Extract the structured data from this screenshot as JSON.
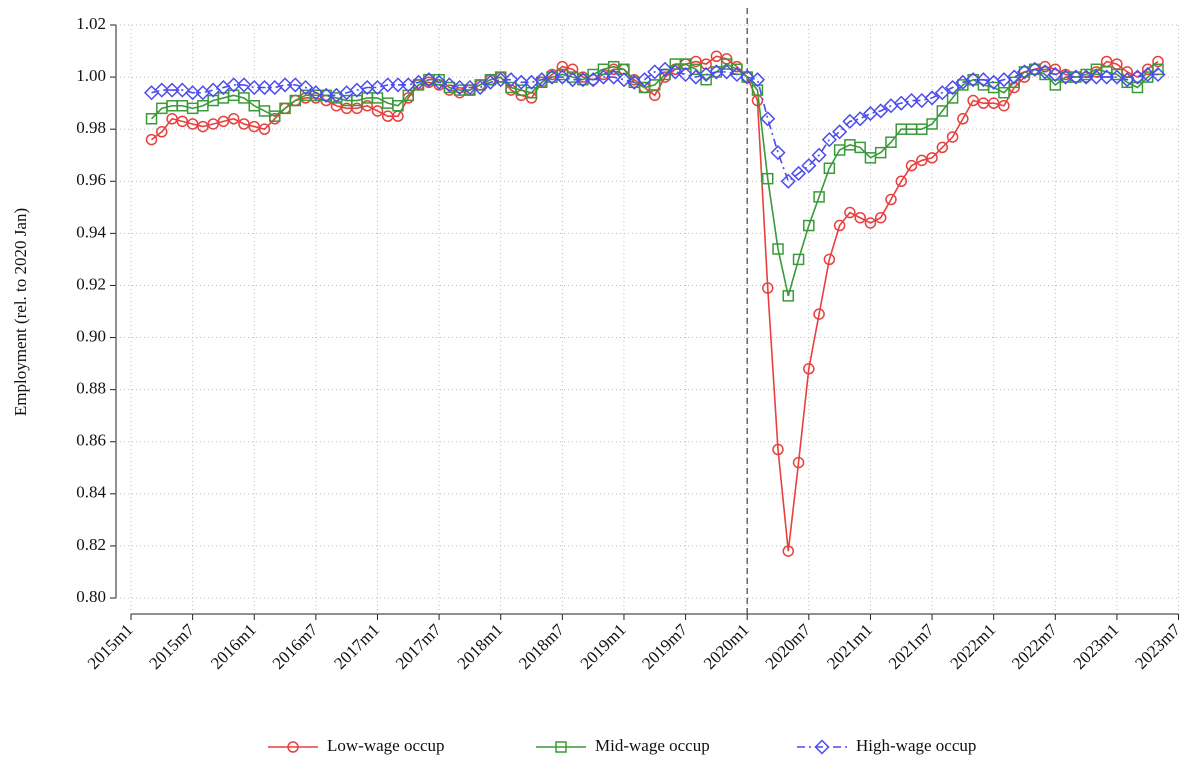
{
  "chart_data": {
    "type": "line",
    "ylabel": "Employment (rel. to 2020 Jan)",
    "categories": [
      "2015m1",
      null,
      null,
      null,
      null,
      null,
      "2015m7",
      null,
      null,
      null,
      null,
      null,
      "2016m1",
      null,
      null,
      null,
      null,
      null,
      "2016m7",
      null,
      null,
      null,
      null,
      null,
      "2017m1",
      null,
      null,
      null,
      null,
      null,
      "2017m7",
      null,
      null,
      null,
      null,
      null,
      "2018m1",
      null,
      null,
      null,
      null,
      null,
      "2018m7",
      null,
      null,
      null,
      null,
      null,
      "2019m1",
      null,
      null,
      null,
      null,
      null,
      "2019m7",
      null,
      null,
      null,
      null,
      null,
      "2020m1",
      null,
      null,
      null,
      null,
      null,
      "2020m7",
      null,
      null,
      null,
      null,
      null,
      "2021m1",
      null,
      null,
      null,
      null,
      null,
      "2021m7",
      null,
      null,
      null,
      null,
      null,
      "2022m1",
      null,
      null,
      null,
      null,
      null,
      "2022m7",
      null,
      null,
      null,
      null,
      null,
      "2023m1",
      null,
      null,
      null,
      null,
      null,
      "2023m7"
    ],
    "reference_line": "2020m1",
    "ylim": [
      0.8,
      1.02
    ],
    "yticks": [
      {
        "value": 0.8,
        "label": "0.80"
      },
      0.82,
      0.84,
      0.86,
      0.88,
      {
        "value": 0.9,
        "label": "0.90"
      },
      0.92,
      0.94,
      0.96,
      0.98,
      {
        "value": 1.0,
        "label": "1.00"
      },
      1.02
    ],
    "grid": true,
    "legend": "bottom",
    "series": [
      {
        "name": "Low-wage occup",
        "color": "#e8403f",
        "marker": "circle",
        "dash": "solid",
        "values": [
          null,
          null,
          0.976,
          0.979,
          0.984,
          0.983,
          0.982,
          0.981,
          0.982,
          0.983,
          0.984,
          0.982,
          0.981,
          0.98,
          0.984,
          0.988,
          0.991,
          0.992,
          0.992,
          0.991,
          0.989,
          0.988,
          0.988,
          0.989,
          0.987,
          0.985,
          0.985,
          0.992,
          0.997,
          0.998,
          0.997,
          0.995,
          0.994,
          0.995,
          0.997,
          0.999,
          1.0,
          0.995,
          0.993,
          0.992,
          0.998,
          1.001,
          1.004,
          1.003,
          1.0,
          0.999,
          1.001,
          1.003,
          1.003,
          0.999,
          0.996,
          0.993,
          1.0,
          1.003,
          1.005,
          1.006,
          1.005,
          1.008,
          1.007,
          1.004,
          1.0,
          0.991,
          0.919,
          0.857,
          0.818,
          0.852,
          0.888,
          0.909,
          0.93,
          0.943,
          0.948,
          0.946,
          0.944,
          0.946,
          0.953,
          0.96,
          0.966,
          0.968,
          0.969,
          0.973,
          0.977,
          0.984,
          0.991,
          0.99,
          0.99,
          0.989,
          0.996,
          1.0,
          1.003,
          1.004,
          1.003,
          1.001,
          1.0,
          1.0,
          1.002,
          1.006,
          1.005,
          1.002,
          1.0,
          1.003,
          1.006,
          null,
          null
        ]
      },
      {
        "name": "Mid-wage occup",
        "color": "#3a9a3a",
        "marker": "square",
        "dash": "solid",
        "values": [
          null,
          null,
          0.984,
          0.988,
          0.989,
          0.989,
          0.988,
          0.989,
          0.991,
          0.992,
          0.993,
          0.992,
          0.989,
          0.987,
          0.985,
          0.988,
          0.991,
          0.993,
          0.993,
          0.993,
          0.992,
          0.991,
          0.991,
          0.992,
          0.992,
          0.99,
          0.989,
          0.993,
          0.997,
          0.999,
          0.999,
          0.996,
          0.995,
          0.995,
          0.997,
          0.999,
          1.0,
          0.996,
          0.995,
          0.994,
          0.998,
          1.0,
          1.001,
          1.0,
          0.999,
          1.001,
          1.003,
          1.004,
          1.003,
          0.998,
          0.996,
          0.997,
          1.001,
          1.005,
          1.005,
          1.003,
          0.999,
          1.002,
          1.005,
          1.003,
          1.0,
          0.995,
          0.961,
          0.934,
          0.916,
          0.93,
          0.943,
          0.954,
          0.965,
          0.972,
          0.974,
          0.973,
          0.969,
          0.971,
          0.975,
          0.98,
          0.98,
          0.98,
          0.982,
          0.987,
          0.992,
          0.997,
          0.999,
          0.997,
          0.996,
          0.994,
          0.998,
          1.002,
          1.003,
          1.001,
          0.997,
          1.0,
          1.0,
          1.001,
          1.003,
          1.002,
          1.001,
          0.998,
          0.996,
          1.0,
          1.003,
          null,
          null
        ]
      },
      {
        "name": "High-wage occup",
        "color": "#4b4bf0",
        "marker": "diamond",
        "dash": "dashdot",
        "values": [
          null,
          null,
          0.994,
          0.995,
          0.995,
          0.995,
          0.994,
          0.994,
          0.995,
          0.996,
          0.997,
          0.997,
          0.996,
          0.996,
          0.996,
          0.997,
          0.997,
          0.996,
          0.994,
          0.993,
          0.993,
          0.994,
          0.995,
          0.996,
          0.996,
          0.997,
          0.997,
          0.997,
          0.998,
          0.999,
          0.998,
          0.997,
          0.996,
          0.996,
          0.996,
          0.998,
          0.999,
          0.999,
          0.998,
          0.998,
          0.999,
          1.0,
          1.0,
          0.999,
          0.999,
          0.999,
          1.0,
          1.0,
          0.999,
          0.998,
          0.999,
          1.002,
          1.003,
          1.002,
          1.001,
          1.0,
          1.001,
          1.002,
          1.002,
          1.001,
          1.0,
          0.999,
          0.984,
          0.971,
          0.96,
          0.963,
          0.966,
          0.97,
          0.976,
          0.979,
          0.983,
          0.984,
          0.986,
          0.987,
          0.989,
          0.99,
          0.991,
          0.991,
          0.992,
          0.994,
          0.996,
          0.998,
          0.999,
          0.999,
          0.998,
          0.999,
          1.0,
          1.002,
          1.003,
          1.002,
          1.001,
          1.0,
          1.0,
          1.0,
          1.0,
          1.0,
          1.0,
          0.999,
          1.0,
          1.001,
          1.001,
          null,
          null
        ]
      }
    ]
  }
}
